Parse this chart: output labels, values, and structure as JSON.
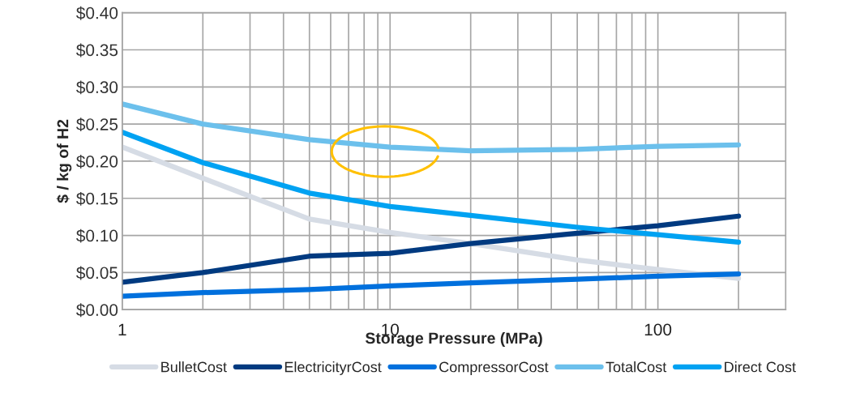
{
  "chart_data": {
    "type": "line",
    "xlabel": "Storage Pressure (MPa)",
    "ylabel": "$ / kg of H2",
    "log": "x",
    "grid": true,
    "legend": "bottom",
    "line_style": "solid",
    "marker": "none",
    "xlim": [
      1,
      300
    ],
    "ylim": [
      0,
      0.4
    ],
    "xticks": [
      1,
      {
        "value": 2,
        "label": null
      },
      {
        "value": 3,
        "label": null
      },
      {
        "value": 4,
        "label": null
      },
      {
        "value": 5,
        "label": null
      },
      {
        "value": 6,
        "label": null
      },
      {
        "value": 7,
        "label": null
      },
      {
        "value": 8,
        "label": null
      },
      {
        "value": 9,
        "label": null
      },
      10,
      {
        "value": 20,
        "label": null
      },
      {
        "value": 30,
        "label": null
      },
      {
        "value": 40,
        "label": null
      },
      {
        "value": 50,
        "label": null
      },
      {
        "value": 60,
        "label": null
      },
      {
        "value": 70,
        "label": null
      },
      {
        "value": 80,
        "label": null
      },
      {
        "value": 90,
        "label": null
      },
      100,
      {
        "value": 200,
        "label": null
      }
    ],
    "yticks": [
      {
        "value": 0,
        "label": "$0.00"
      },
      {
        "value": 0.05,
        "label": "$0.05"
      },
      {
        "value": 0.1,
        "label": "$0.10"
      },
      {
        "value": 0.15,
        "label": "$0.15"
      },
      {
        "value": 0.2,
        "label": "$0.20"
      },
      {
        "value": 0.25,
        "label": "$0.25"
      },
      {
        "value": 0.3,
        "label": "$0.30"
      },
      {
        "value": 0.35,
        "label": "$0.35"
      },
      {
        "value": 0.4,
        "label": "$0.40"
      }
    ],
    "x": [
      1,
      2,
      5,
      10,
      20,
      50,
      100,
      200
    ],
    "series": [
      {
        "name": "BulletCost",
        "color": "#d6dce5",
        "values": [
          0.219,
          0.177,
          0.122,
          0.104,
          0.089,
          0.067,
          0.054,
          0.042
        ]
      },
      {
        "name": "ElectricityrCost",
        "color": "#003a80",
        "values": [
          0.037,
          0.05,
          0.072,
          0.076,
          0.089,
          0.103,
          0.113,
          0.126
        ]
      },
      {
        "name": "CompressorCost",
        "color": "#0070dd",
        "values": [
          0.018,
          0.023,
          0.027,
          0.032,
          0.036,
          0.041,
          0.045,
          0.048
        ]
      },
      {
        "name": "TotalCost",
        "color": "#6cc0ec",
        "values": [
          0.277,
          0.25,
          0.229,
          0.219,
          0.214,
          0.216,
          0.22,
          0.222
        ]
      },
      {
        "name": "Direct Cost",
        "color": "#00a2f2",
        "values": [
          0.239,
          0.198,
          0.157,
          0.139,
          0.127,
          0.111,
          0.101,
          0.091
        ]
      }
    ]
  }
}
